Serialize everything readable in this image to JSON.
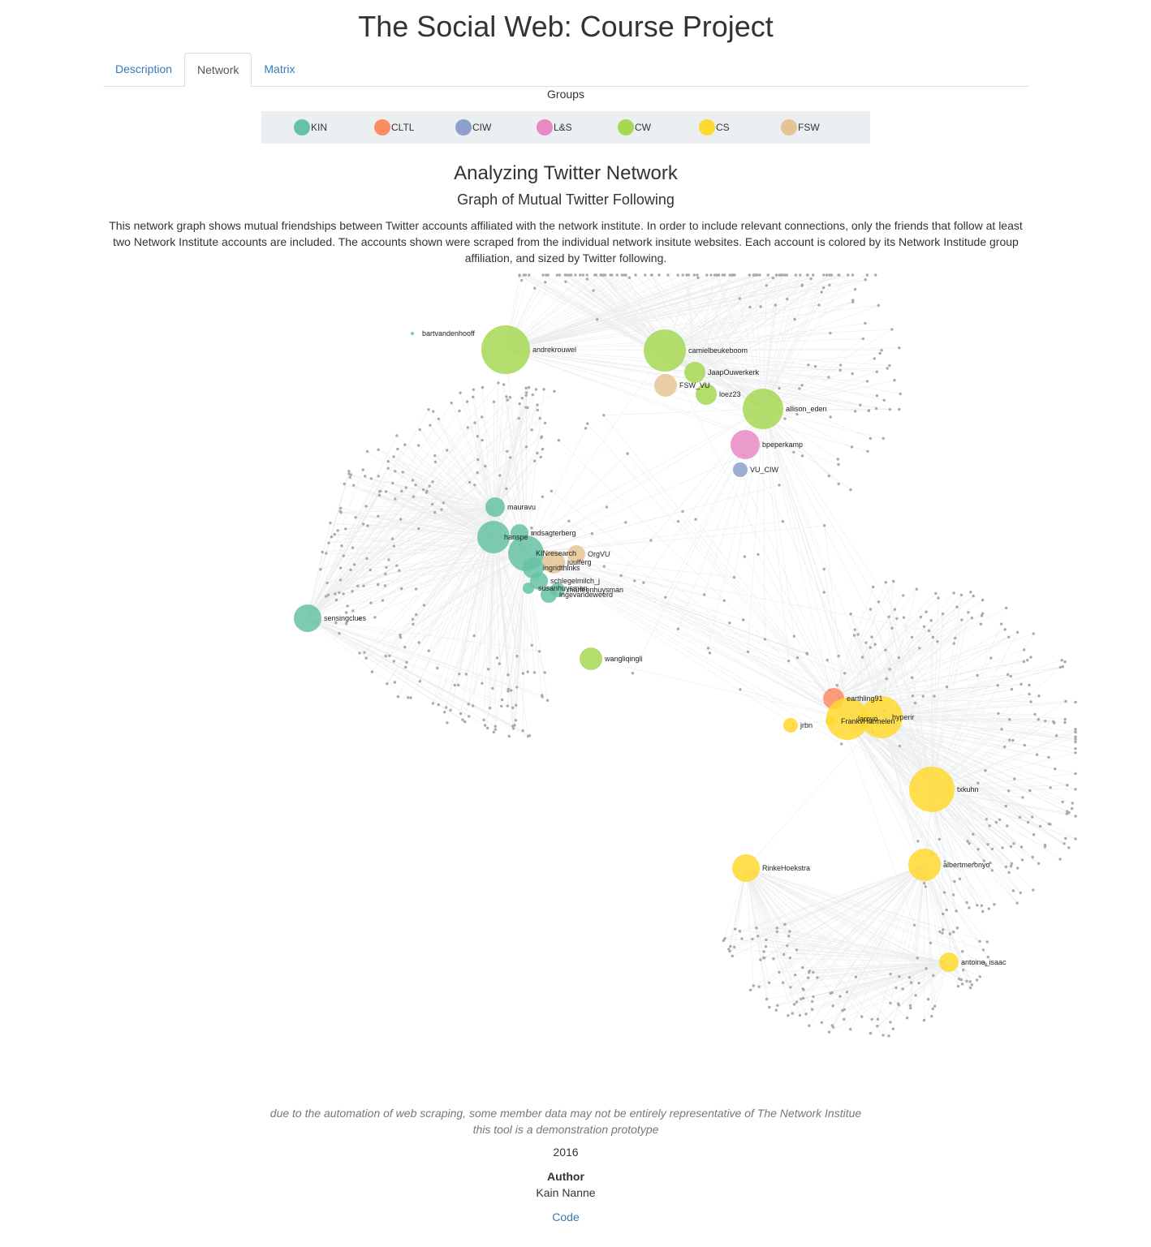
{
  "page_title": "The Social Web: Course Project",
  "tabs": [
    {
      "label": "Description",
      "active": false
    },
    {
      "label": "Network",
      "active": true
    },
    {
      "label": "Matrix",
      "active": false
    }
  ],
  "groups": {
    "title": "Groups",
    "items": [
      {
        "label": "KIN",
        "color": "#66c2a5"
      },
      {
        "label": "CLTL",
        "color": "#fc8d62"
      },
      {
        "label": "CIW",
        "color": "#8da0cb"
      },
      {
        "label": "L&S",
        "color": "#e78ac3"
      },
      {
        "label": "CW",
        "color": "#a6d854"
      },
      {
        "label": "CS",
        "color": "#ffd92f"
      },
      {
        "label": "FSW",
        "color": "#e5c494"
      }
    ]
  },
  "section": {
    "title": "Analyzing Twitter Network",
    "subtitle": "Graph of Mutual Twitter Following",
    "description": "This network graph shows mutual friendships between Twitter accounts affiliated with the network institute. In order to include relevant connections, only the friends that follow at least two Network Institute accounts are included. The accounts shown were scraped from the individual network insitute websites. Each account is colored by its Network Institude group affiliation, and sized by Twitter following."
  },
  "graph": {
    "edge_color": "#e3e6e8",
    "friend_node_color": "#aaaaaa",
    "accounts": [
      {
        "name": "bartvandenhooff",
        "group": "KIN"
      },
      {
        "name": "andrekrouwel",
        "group": "CW"
      },
      {
        "name": "camielbeukeboom",
        "group": "CW"
      },
      {
        "name": "JaapOuwerkerk",
        "group": "CW"
      },
      {
        "name": "FSW_VU",
        "group": "FSW"
      },
      {
        "name": "loez23",
        "group": "CW"
      },
      {
        "name": "allison_eden",
        "group": "CW"
      },
      {
        "name": "bpeperkamp",
        "group": "L&S"
      },
      {
        "name": "VU_CIW",
        "group": "CIW"
      },
      {
        "name": "mauravu",
        "group": "KIN"
      },
      {
        "name": "hanspe",
        "group": "KIN"
      },
      {
        "name": "mdsagterberg",
        "group": "KIN"
      },
      {
        "name": "KINresearch",
        "group": "KIN"
      },
      {
        "name": "OrgVU",
        "group": "FSW"
      },
      {
        "name": "juulferg",
        "group": "FSW"
      },
      {
        "name": "ingridthinks",
        "group": "KIN"
      },
      {
        "name": "schlegelmilch_j",
        "group": "KIN"
      },
      {
        "name": "susanhuysman",
        "group": "KIN"
      },
      {
        "name": "marleenhuysman",
        "group": "KIN"
      },
      {
        "name": "ingevandeweerd",
        "group": "KIN"
      },
      {
        "name": "sensingclues",
        "group": "KIN"
      },
      {
        "name": "wangliqingli",
        "group": "CW"
      },
      {
        "name": "earthling91",
        "group": "CLTL"
      },
      {
        "name": "jrbn",
        "group": "CS"
      },
      {
        "name": "FrankvHarmelen",
        "group": "CS"
      },
      {
        "name": "laroyo",
        "group": "CS"
      },
      {
        "name": "hyperir",
        "group": "CS"
      },
      {
        "name": "txkuhn",
        "group": "CS"
      },
      {
        "name": "RinkeHoekstra",
        "group": "CS"
      },
      {
        "name": "albertmeronyo",
        "group": "CS"
      },
      {
        "name": "antoine_isaac",
        "group": "CS"
      }
    ]
  },
  "footer": {
    "note_line1": "due to the automation of web scraping, some member data may not be entirely representative of The Network Institue",
    "note_line2": "this tool is a demonstration prototype",
    "year": "2016",
    "author_heading": "Author",
    "author_name": "Kain Nanne",
    "code_link": "Code"
  }
}
